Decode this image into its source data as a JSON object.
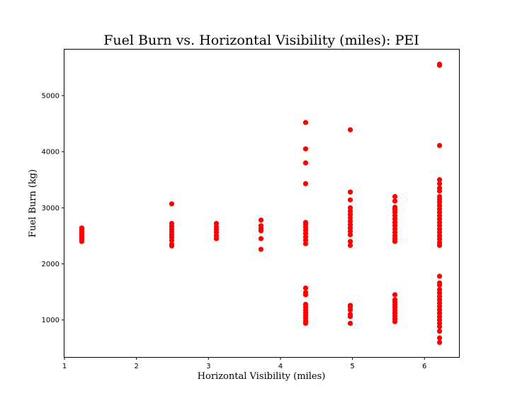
{
  "chart_data": {
    "type": "scatter",
    "title": "Fuel Burn vs. Horizontal Visibility (miles): PEI",
    "xlabel": "Horizontal Visibility (miles)",
    "ylabel": "Fuel Burn (kg)",
    "xlim": [
      1.0,
      6.48
    ],
    "ylim": [
      340,
      5820
    ],
    "xticks": [
      1,
      2,
      3,
      4,
      5,
      6
    ],
    "yticks": [
      1000,
      2000,
      3000,
      4000,
      5000
    ],
    "grid": false,
    "marker_color": "#ff0000",
    "series": [
      {
        "points": [
          [
            1.24,
            2400
          ],
          [
            1.24,
            2430
          ],
          [
            1.24,
            2460
          ],
          [
            1.24,
            2490
          ],
          [
            1.24,
            2520
          ],
          [
            1.24,
            2550
          ],
          [
            1.24,
            2580
          ],
          [
            1.24,
            2610
          ],
          [
            1.24,
            2640
          ],
          [
            2.49,
            2320
          ],
          [
            2.49,
            2350
          ],
          [
            2.49,
            2420
          ],
          [
            2.49,
            2470
          ],
          [
            2.49,
            2520
          ],
          [
            2.49,
            2570
          ],
          [
            2.49,
            2620
          ],
          [
            2.49,
            2670
          ],
          [
            2.49,
            2720
          ],
          [
            2.49,
            3070
          ],
          [
            3.11,
            2450
          ],
          [
            3.11,
            2500
          ],
          [
            3.11,
            2560
          ],
          [
            3.11,
            2610
          ],
          [
            3.11,
            2660
          ],
          [
            3.11,
            2720
          ],
          [
            3.73,
            2260
          ],
          [
            3.73,
            2450
          ],
          [
            3.73,
            2590
          ],
          [
            3.73,
            2630
          ],
          [
            3.73,
            2680
          ],
          [
            3.73,
            2780
          ],
          [
            4.35,
            940
          ],
          [
            4.35,
            980
          ],
          [
            4.35,
            1030
          ],
          [
            4.35,
            1080
          ],
          [
            4.35,
            1130
          ],
          [
            4.35,
            1180
          ],
          [
            4.35,
            1230
          ],
          [
            4.35,
            1280
          ],
          [
            4.35,
            1450
          ],
          [
            4.35,
            1490
          ],
          [
            4.35,
            1570
          ],
          [
            4.35,
            2360
          ],
          [
            4.35,
            2420
          ],
          [
            4.35,
            2480
          ],
          [
            4.35,
            2540
          ],
          [
            4.35,
            2600
          ],
          [
            4.35,
            2650
          ],
          [
            4.35,
            2700
          ],
          [
            4.35,
            2740
          ],
          [
            4.35,
            3430
          ],
          [
            4.35,
            3800
          ],
          [
            4.35,
            4050
          ],
          [
            4.35,
            4520
          ],
          [
            4.97,
            940
          ],
          [
            4.97,
            1060
          ],
          [
            4.97,
            1100
          ],
          [
            4.97,
            1180
          ],
          [
            4.97,
            1230
          ],
          [
            4.97,
            1260
          ],
          [
            4.97,
            2330
          ],
          [
            4.97,
            2400
          ],
          [
            4.97,
            2520
          ],
          [
            4.97,
            2580
          ],
          [
            4.97,
            2640
          ],
          [
            4.97,
            2700
          ],
          [
            4.97,
            2760
          ],
          [
            4.97,
            2820
          ],
          [
            4.97,
            2880
          ],
          [
            4.97,
            2940
          ],
          [
            4.97,
            3000
          ],
          [
            4.97,
            3140
          ],
          [
            4.97,
            3280
          ],
          [
            4.97,
            4390
          ],
          [
            5.59,
            970
          ],
          [
            5.59,
            1020
          ],
          [
            5.59,
            1070
          ],
          [
            5.59,
            1120
          ],
          [
            5.59,
            1170
          ],
          [
            5.59,
            1220
          ],
          [
            5.59,
            1270
          ],
          [
            5.59,
            1320
          ],
          [
            5.59,
            1360
          ],
          [
            5.59,
            1450
          ],
          [
            5.59,
            2400
          ],
          [
            5.59,
            2450
          ],
          [
            5.59,
            2500
          ],
          [
            5.59,
            2560
          ],
          [
            5.59,
            2620
          ],
          [
            5.59,
            2680
          ],
          [
            5.59,
            2740
          ],
          [
            5.59,
            2800
          ],
          [
            5.59,
            2860
          ],
          [
            5.59,
            2920
          ],
          [
            5.59,
            2970
          ],
          [
            5.59,
            3010
          ],
          [
            5.59,
            3120
          ],
          [
            5.59,
            3200
          ],
          [
            6.21,
            600
          ],
          [
            6.21,
            680
          ],
          [
            6.21,
            800
          ],
          [
            6.21,
            880
          ],
          [
            6.21,
            940
          ],
          [
            6.21,
            1000
          ],
          [
            6.21,
            1060
          ],
          [
            6.21,
            1120
          ],
          [
            6.21,
            1180
          ],
          [
            6.21,
            1240
          ],
          [
            6.21,
            1300
          ],
          [
            6.21,
            1360
          ],
          [
            6.21,
            1420
          ],
          [
            6.21,
            1480
          ],
          [
            6.21,
            1540
          ],
          [
            6.21,
            1620
          ],
          [
            6.21,
            1660
          ],
          [
            6.21,
            1780
          ],
          [
            6.21,
            2330
          ],
          [
            6.21,
            2380
          ],
          [
            6.21,
            2440
          ],
          [
            6.21,
            2500
          ],
          [
            6.21,
            2560
          ],
          [
            6.21,
            2620
          ],
          [
            6.21,
            2680
          ],
          [
            6.21,
            2740
          ],
          [
            6.21,
            2800
          ],
          [
            6.21,
            2860
          ],
          [
            6.21,
            2920
          ],
          [
            6.21,
            2980
          ],
          [
            6.21,
            3040
          ],
          [
            6.21,
            3100
          ],
          [
            6.21,
            3150
          ],
          [
            6.21,
            3200
          ],
          [
            6.21,
            3300
          ],
          [
            6.21,
            3350
          ],
          [
            6.21,
            3430
          ],
          [
            6.21,
            3500
          ],
          [
            6.21,
            4110
          ],
          [
            6.21,
            5540
          ],
          [
            6.21,
            5560
          ]
        ]
      }
    ]
  }
}
